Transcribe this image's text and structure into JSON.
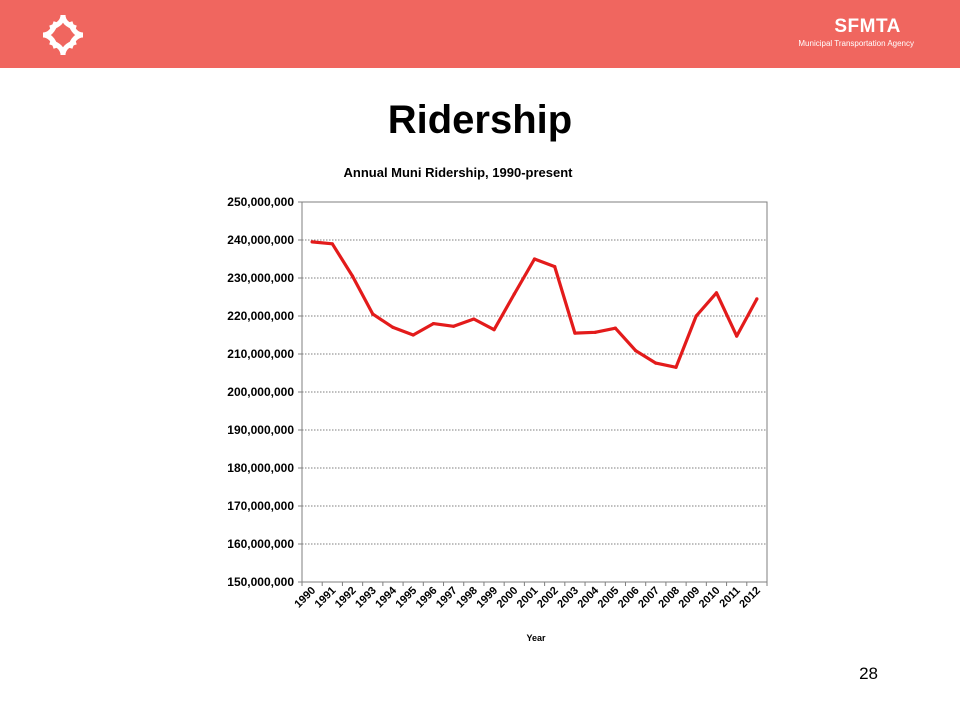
{
  "header": {
    "brand_name": "SFMTA",
    "brand_subtitle": "Municipal Transportation Agency",
    "logo_icon": "sfmta-diamond-logo-icon",
    "background_color": "#f0665f"
  },
  "slide": {
    "title": "Ridership",
    "page_number": "28"
  },
  "chart_data": {
    "type": "line",
    "title": "Annual Muni Ridership, 1990-present",
    "xlabel": "Year",
    "ylabel": "",
    "ylim": [
      150000000,
      250000000
    ],
    "ytick_values": [
      150000000,
      160000000,
      170000000,
      180000000,
      190000000,
      200000000,
      210000000,
      220000000,
      230000000,
      240000000,
      250000000
    ],
    "ytick_labels": [
      "150,000,000",
      "160,000,000",
      "170,000,000",
      "180,000,000",
      "190,000,000",
      "200,000,000",
      "210,000,000",
      "220,000,000",
      "230,000,000",
      "240,000,000",
      "250,000,000"
    ],
    "categories": [
      "1990",
      "1991",
      "1992",
      "1993",
      "1994",
      "1995",
      "1996",
      "1997",
      "1998",
      "1999",
      "2000",
      "2001",
      "2002",
      "2003",
      "2004",
      "2005",
      "2006",
      "2007",
      "2008",
      "2009",
      "2010",
      "2011",
      "2012"
    ],
    "series": [
      {
        "color": "#e31b1b",
        "values": [
          239500000,
          239000000,
          230500000,
          220500000,
          217000000,
          215000000,
          218000000,
          217300000,
          219200000,
          216400000,
          225800000,
          235000000,
          233000000,
          215500000,
          215700000,
          216800000,
          210900000,
          207600000,
          206500000,
          220000000,
          226100000,
          214700000,
          224500000
        ]
      }
    ],
    "grid": "horizontal dotted"
  }
}
